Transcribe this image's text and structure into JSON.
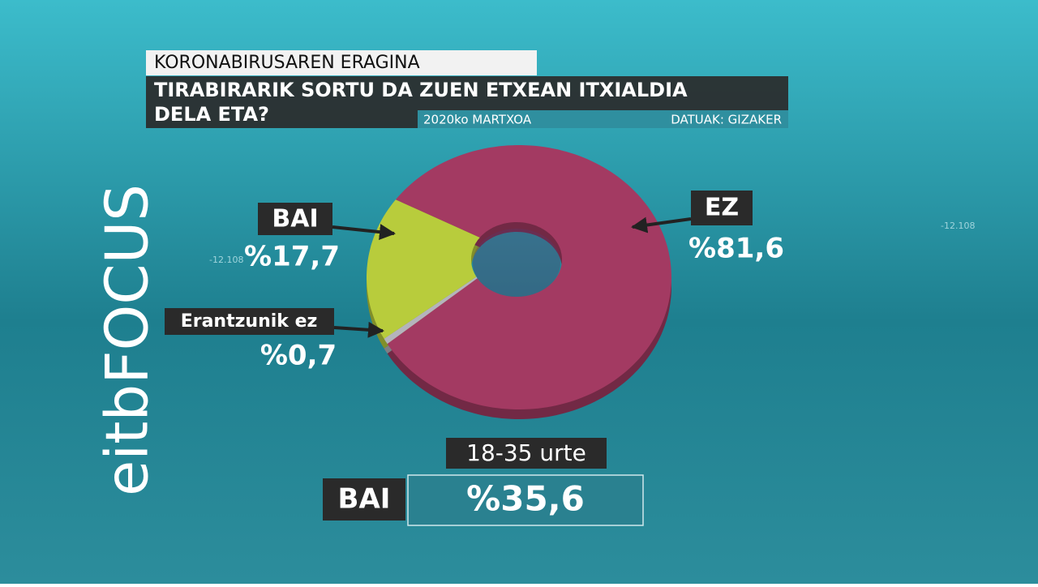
{
  "header": "KORONABIRUSAREN ERAGINA",
  "title_lines": [
    "TIRABIRARIK SORTU DA ZUEN ETXEAN ITXIALDIA",
    "DELA ETA?"
  ],
  "date": "2020ko MARTXOA",
  "source": "DATUAK: GIZAKER",
  "logo": "eitbFOCUS",
  "background_labels": [
    "-12.108",
    "-12.108"
  ],
  "chart_data": {
    "type": "pie",
    "donut": true,
    "categories": [
      "EZ",
      "Erantzunik ez",
      "BAI"
    ],
    "values": [
      81.6,
      0.7,
      17.7
    ],
    "value_labels": [
      "%81,6",
      "%0,7",
      "%17,7"
    ],
    "colors": [
      "#a33a62",
      "#b4b4bc",
      "#b8cc3c"
    ]
  },
  "highlight": {
    "group": "18-35 urte",
    "category": "BAI",
    "value": 35.6,
    "value_label": "%35,6"
  }
}
